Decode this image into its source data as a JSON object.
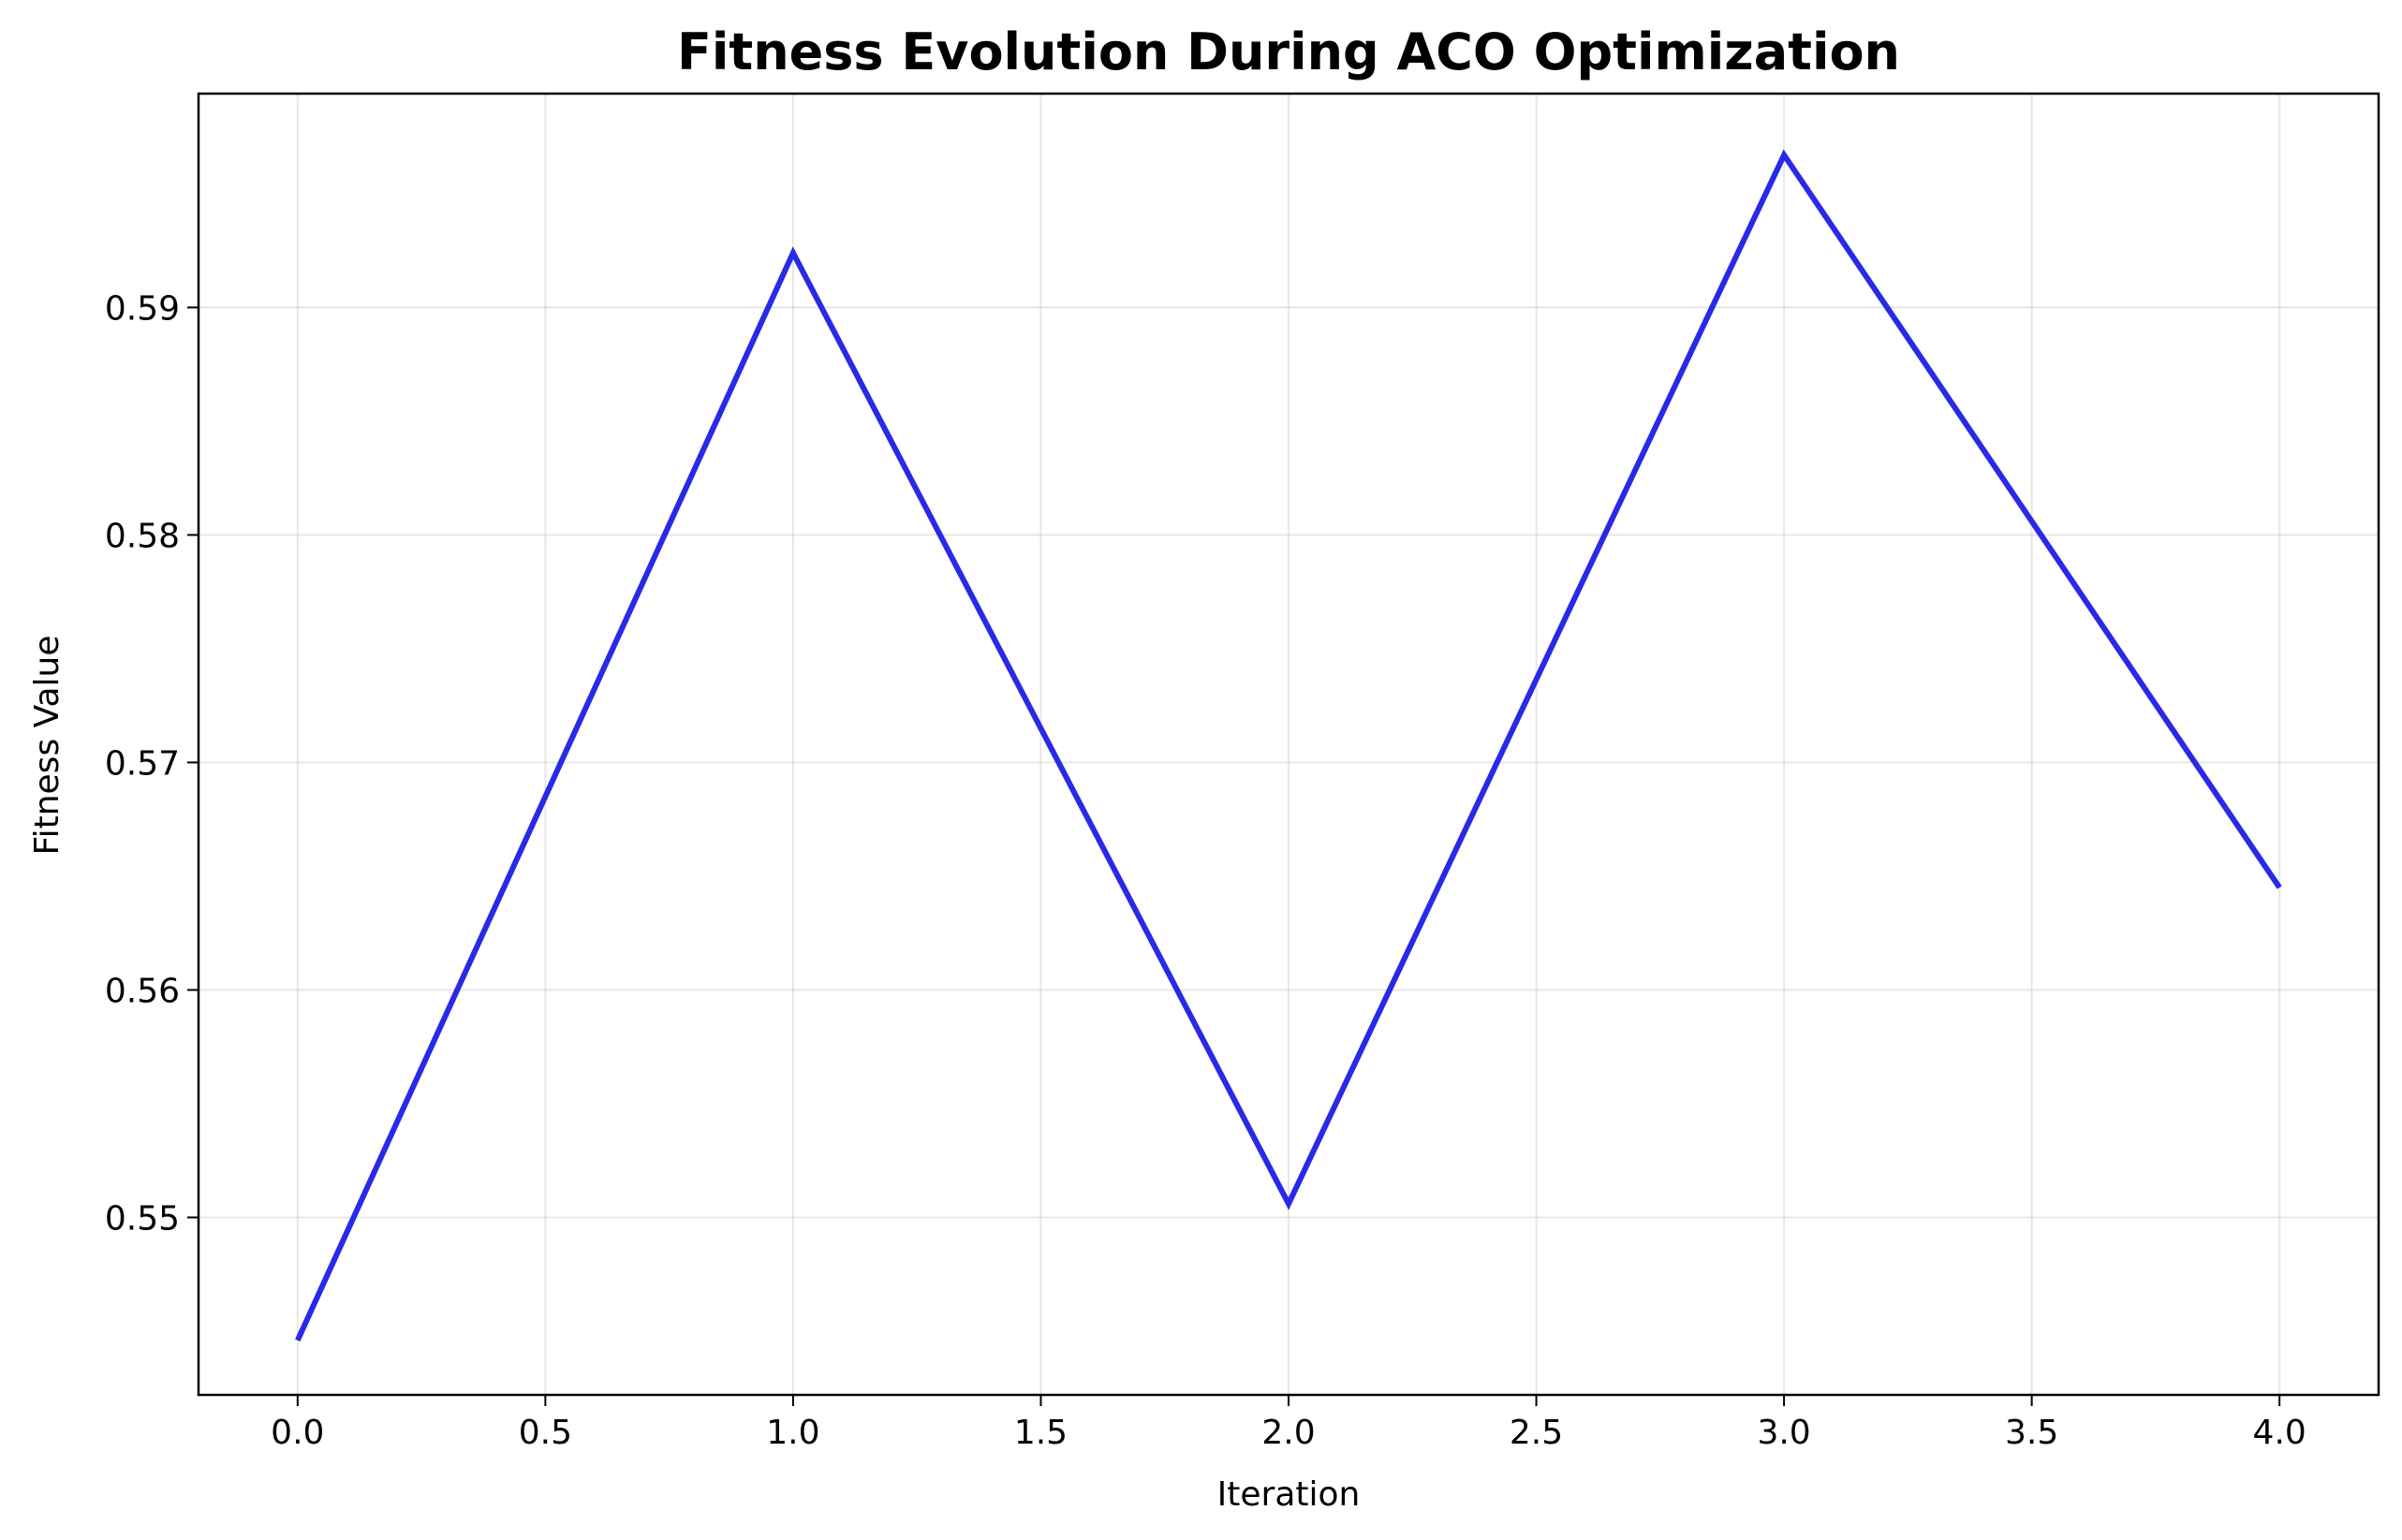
{
  "chart_data": {
    "type": "line",
    "title": "Fitness Evolution During ACO Optimization",
    "xlabel": "Iteration",
    "ylabel": "Fitness Value",
    "x": [
      0,
      1,
      2,
      3,
      4
    ],
    "series": [
      {
        "values": [
          0.5446,
          0.5924,
          0.5506,
          0.5967,
          0.5645
        ],
        "color": "#2929e8"
      }
    ],
    "xlim": [
      -0.2,
      4.2
    ],
    "ylim": [
      0.5422,
      0.5994
    ],
    "xticks": [
      0.0,
      0.5,
      1.0,
      1.5,
      2.0,
      2.5,
      3.0,
      3.5,
      4.0
    ],
    "xtick_labels": [
      "0.0",
      "0.5",
      "1.0",
      "1.5",
      "2.0",
      "2.5",
      "3.0",
      "3.5",
      "4.0"
    ],
    "yticks": [
      0.55,
      0.56,
      0.57,
      0.58,
      0.59
    ],
    "ytick_labels": [
      "0.55",
      "0.56",
      "0.57",
      "0.58",
      "0.59"
    ],
    "grid": true,
    "legend": "none"
  }
}
